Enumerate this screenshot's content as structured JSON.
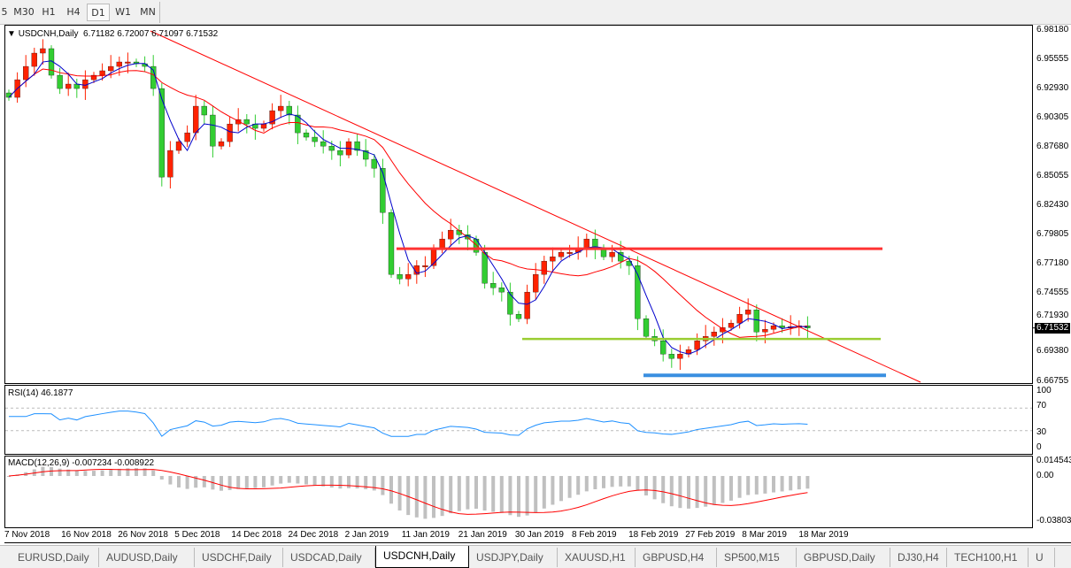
{
  "toolbar": {
    "timeframes": [
      "5",
      "M30",
      "H1",
      "H4",
      "D1",
      "W1",
      "MN"
    ],
    "active": "D1"
  },
  "chart": {
    "title": "USDCNH,Daily",
    "ohlc": "6.71182 6.72007 6.71097 6.71532",
    "current_price": "6.71532",
    "price_ticks": [
      "6.98180",
      "6.95555",
      "6.92930",
      "6.90305",
      "6.87680",
      "6.85055",
      "6.82430",
      "6.79805",
      "6.77180",
      "6.74555",
      "6.71930",
      "6.69380",
      "6.66755"
    ],
    "price_range": [
      6.66755,
      6.9818
    ],
    "date_labels": [
      "7 Nov 2018",
      "16 Nov 2018",
      "26 Nov 2018",
      "5 Dec 2018",
      "14 Dec 2018",
      "24 Dec 2018",
      "2 Jan 2019",
      "11 Jan 2019",
      "21 Jan 2019",
      "30 Jan 2019",
      "8 Feb 2019",
      "18 Feb 2019",
      "27 Feb 2019",
      "8 Mar 2019",
      "18 Mar 2019"
    ],
    "closes": [
      6.9216,
      6.9374,
      6.9493,
      6.9612,
      6.9652,
      6.9414,
      6.9295,
      6.9335,
      6.9295,
      6.9374,
      6.9414,
      6.9454,
      6.9493,
      6.9533,
      6.9533,
      6.9517,
      6.9493,
      6.9295,
      6.8503,
      6.8741,
      6.882,
      6.8899,
      6.9137,
      6.9058,
      6.878,
      6.882,
      6.8978,
      6.9018,
      6.8978,
      6.8939,
      6.8978,
      6.9097,
      6.9137,
      6.9058,
      6.8899,
      6.886,
      6.882,
      6.878,
      6.8741,
      6.8701,
      6.882,
      6.8741,
      6.8662,
      6.8582,
      6.8186,
      6.7632,
      6.7592,
      6.7632,
      6.7711,
      6.7711,
      6.787,
      6.7949,
      6.8028,
      6.7988,
      6.7949,
      6.783,
      6.7553,
      6.7513,
      6.7474,
      6.7276,
      6.7236,
      6.7474,
      6.7632,
      6.7751,
      6.779,
      6.783,
      6.783,
      6.787,
      6.7949,
      6.787,
      6.779,
      6.783,
      6.7751,
      6.7711,
      6.7236,
      6.7078,
      6.7038,
      6.6919,
      6.688,
      6.6919,
      6.6959,
      6.7038,
      6.7078,
      6.7117,
      6.7157,
      6.7196,
      6.7276,
      6.7315,
      6.7117,
      6.7141,
      6.7173,
      6.7157,
      6.7165,
      6.7173,
      6.7153
    ],
    "levels": {
      "resistance": 6.7862,
      "support": 6.7054,
      "low_support": 6.6729
    },
    "colors": {
      "bull": "#ff2200",
      "bear": "#32cd32",
      "ma_fast": "#0000cc",
      "ma_slow": "#ff0000",
      "resistance": "#ff3333",
      "support": "#9acd32",
      "low_support": "#3a8fe0"
    }
  },
  "rsi": {
    "label": "RSI(14) 46.1877",
    "ticks": [
      "100",
      "70",
      "30",
      "0"
    ],
    "color": "#1e90ff"
  },
  "macd": {
    "label": "MACD(12,26,9) -0.007234 -0.008922",
    "ticks": [
      "0.014543",
      "0.00",
      "-0.038038"
    ]
  },
  "tabs": [
    "EURUSD,Daily",
    "AUDUSD,Daily",
    "USDCHF,Daily",
    "USDCAD,Daily",
    "USDCNH,Daily",
    "USDJPY,Daily",
    "XAUUSD,H1",
    "GBPUSD,H4",
    "SP500,M15",
    "GBPUSD,Daily",
    "DJ30,H4",
    "TECH100,H1",
    "U"
  ],
  "active_tab": "USDCNH,Daily"
}
